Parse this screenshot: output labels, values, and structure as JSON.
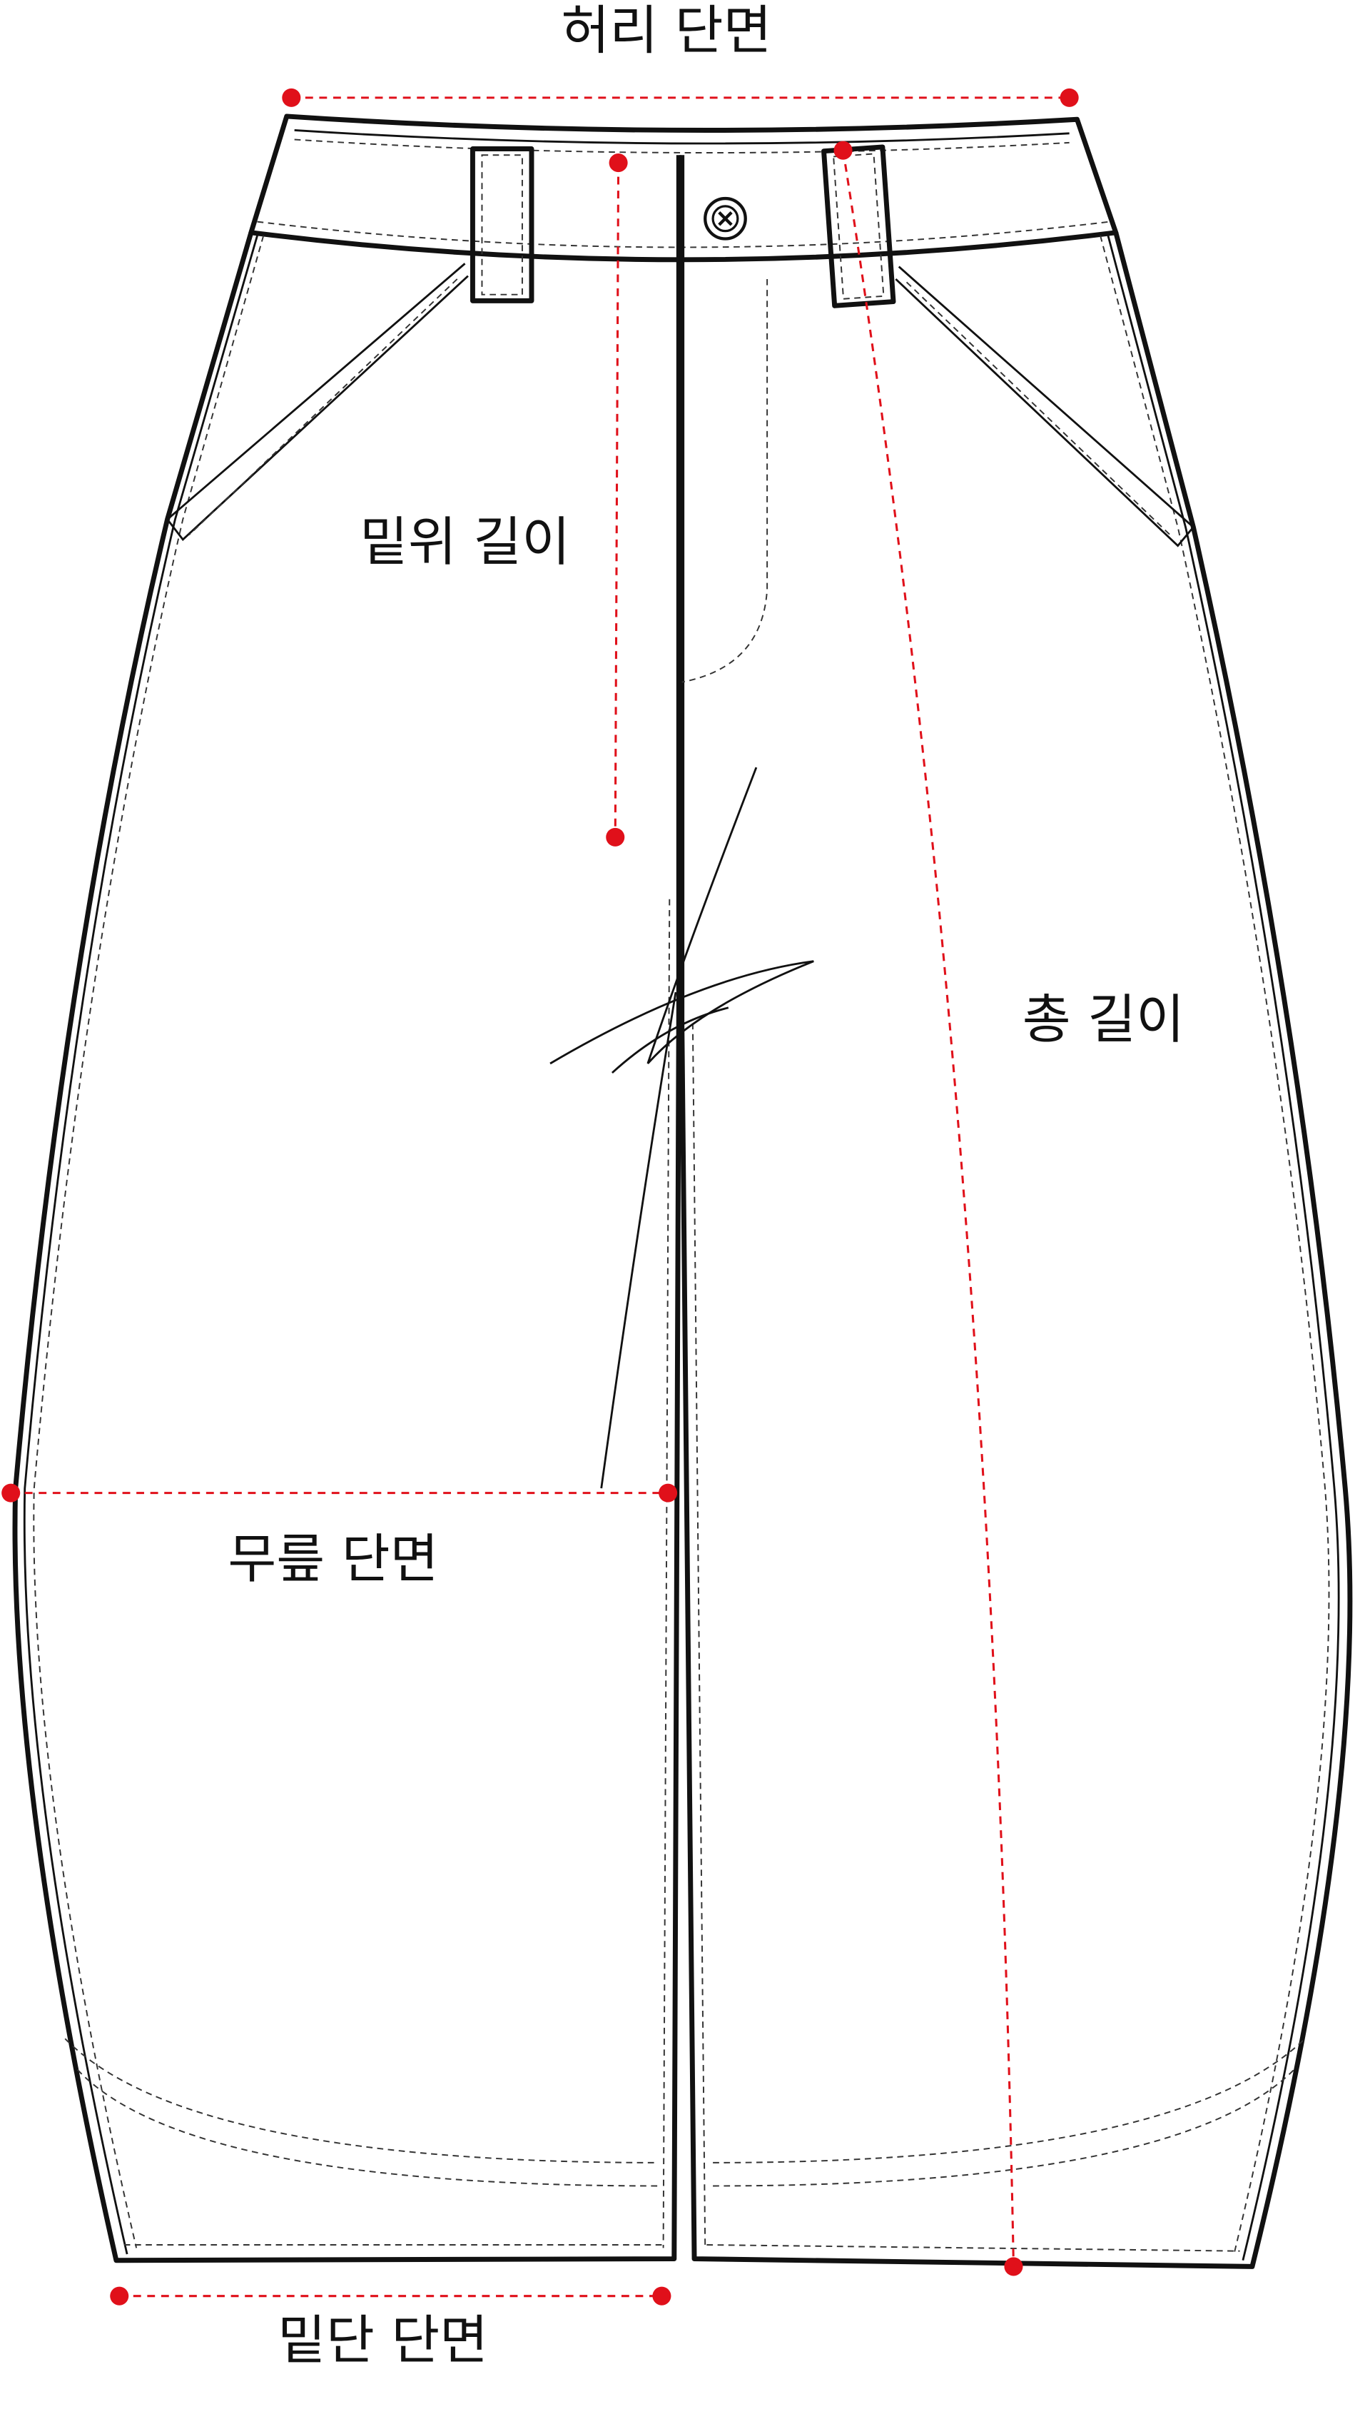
{
  "labels": {
    "waist": "허리 단면",
    "rise": "밑위 길이",
    "total_length": "총 길이",
    "knee": "무릎 단면",
    "hem": "밑단 단면"
  }
}
